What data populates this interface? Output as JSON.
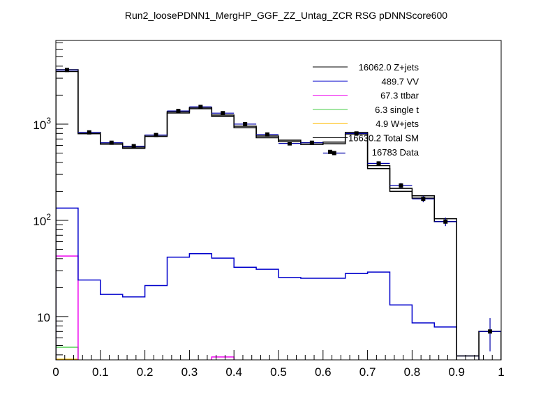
{
  "chart_data": {
    "type": "bar",
    "style": "stacked-step-histogram-with-data-points",
    "title": "Run2_loosePDNN1_MergHP_GGF_ZZ_Untag_ZCR RSG  pDNNScore600",
    "xlabel": "",
    "ylabel": "",
    "xlim": [
      0,
      1
    ],
    "ylim": [
      3.55,
      7400
    ],
    "yscale": "log",
    "grid": false,
    "x_tick_labels": [
      "0",
      "0.1",
      "0.2",
      "0.3",
      "0.4",
      "0.5",
      "0.6",
      "0.7",
      "0.8",
      "0.9",
      "1"
    ],
    "y_tick_labels": [
      {
        "base": "10",
        "exp": "",
        "value": 10
      },
      {
        "base": "10",
        "exp": "2",
        "value": 100
      },
      {
        "base": "10",
        "exp": "3",
        "value": 1000
      }
    ],
    "bin_edges": [
      0,
      0.05,
      0.1,
      0.15,
      0.2,
      0.25,
      0.3,
      0.35,
      0.4,
      0.45,
      0.5,
      0.55,
      0.6,
      0.65,
      0.7,
      0.75,
      0.8,
      0.85,
      0.9,
      0.95,
      1.0
    ],
    "legend_position": "top-right",
    "series": [
      {
        "name": "Z+jets",
        "legend": "16062.0 Z+jets",
        "color": "#000000",
        "values": [
          3520,
          795,
          618,
          560,
          745,
          1305,
          1445,
          1200,
          918,
          722,
          655,
          615,
          625,
          790,
          345,
          200,
          170,
          97,
          0,
          7.0
        ]
      },
      {
        "name": "VV",
        "legend": "489.7 VV",
        "color": "#0000cc",
        "values": [
          134,
          24,
          17,
          16,
          21,
          41.4,
          45,
          40.5,
          32.5,
          31,
          25.5,
          25,
          25,
          28,
          29,
          13.2,
          8.6,
          7.8,
          3.9,
          0
        ]
      },
      {
        "name": "ttbar",
        "legend": "67.3 ttbar",
        "color": "#ee00ee",
        "values": [
          42.6,
          0,
          0,
          0,
          0,
          0,
          0,
          3.8,
          0,
          0,
          0,
          0,
          0,
          0,
          0,
          0,
          0,
          0,
          0,
          0
        ]
      },
      {
        "name": "single t",
        "legend": "6.3 single t",
        "color": "#44cc44",
        "values": [
          4.8,
          0,
          0,
          0,
          0,
          0,
          0,
          0,
          0,
          0,
          0,
          0,
          0,
          0,
          0,
          0,
          0,
          0,
          0,
          0
        ]
      },
      {
        "name": "W+jets",
        "legend": "4.9 W+jets",
        "color": "#ffbb00",
        "values": [
          3.6,
          0,
          0,
          0,
          0,
          0,
          0,
          0,
          0,
          0,
          0,
          0,
          0,
          0,
          0,
          0,
          0,
          0,
          0,
          0
        ]
      }
    ],
    "total": {
      "name": "Total SM",
      "legend": "16630.2 Total SM",
      "color": "#000000",
      "values": [
        3675,
        820,
        637,
        576,
        766,
        1350,
        1490,
        1240,
        950,
        753,
        680,
        640,
        650,
        820,
        370,
        215,
        180,
        104,
        3.9,
        7.0
      ]
    },
    "data": {
      "name": "Data",
      "legend": "16783 Data",
      "color": "#000000",
      "values": [
        3650,
        820,
        640,
        590,
        770,
        1370,
        1510,
        1300,
        1000,
        780,
        630,
        640,
        500,
        800,
        390,
        230,
        167,
        97,
        0,
        7
      ]
    }
  }
}
